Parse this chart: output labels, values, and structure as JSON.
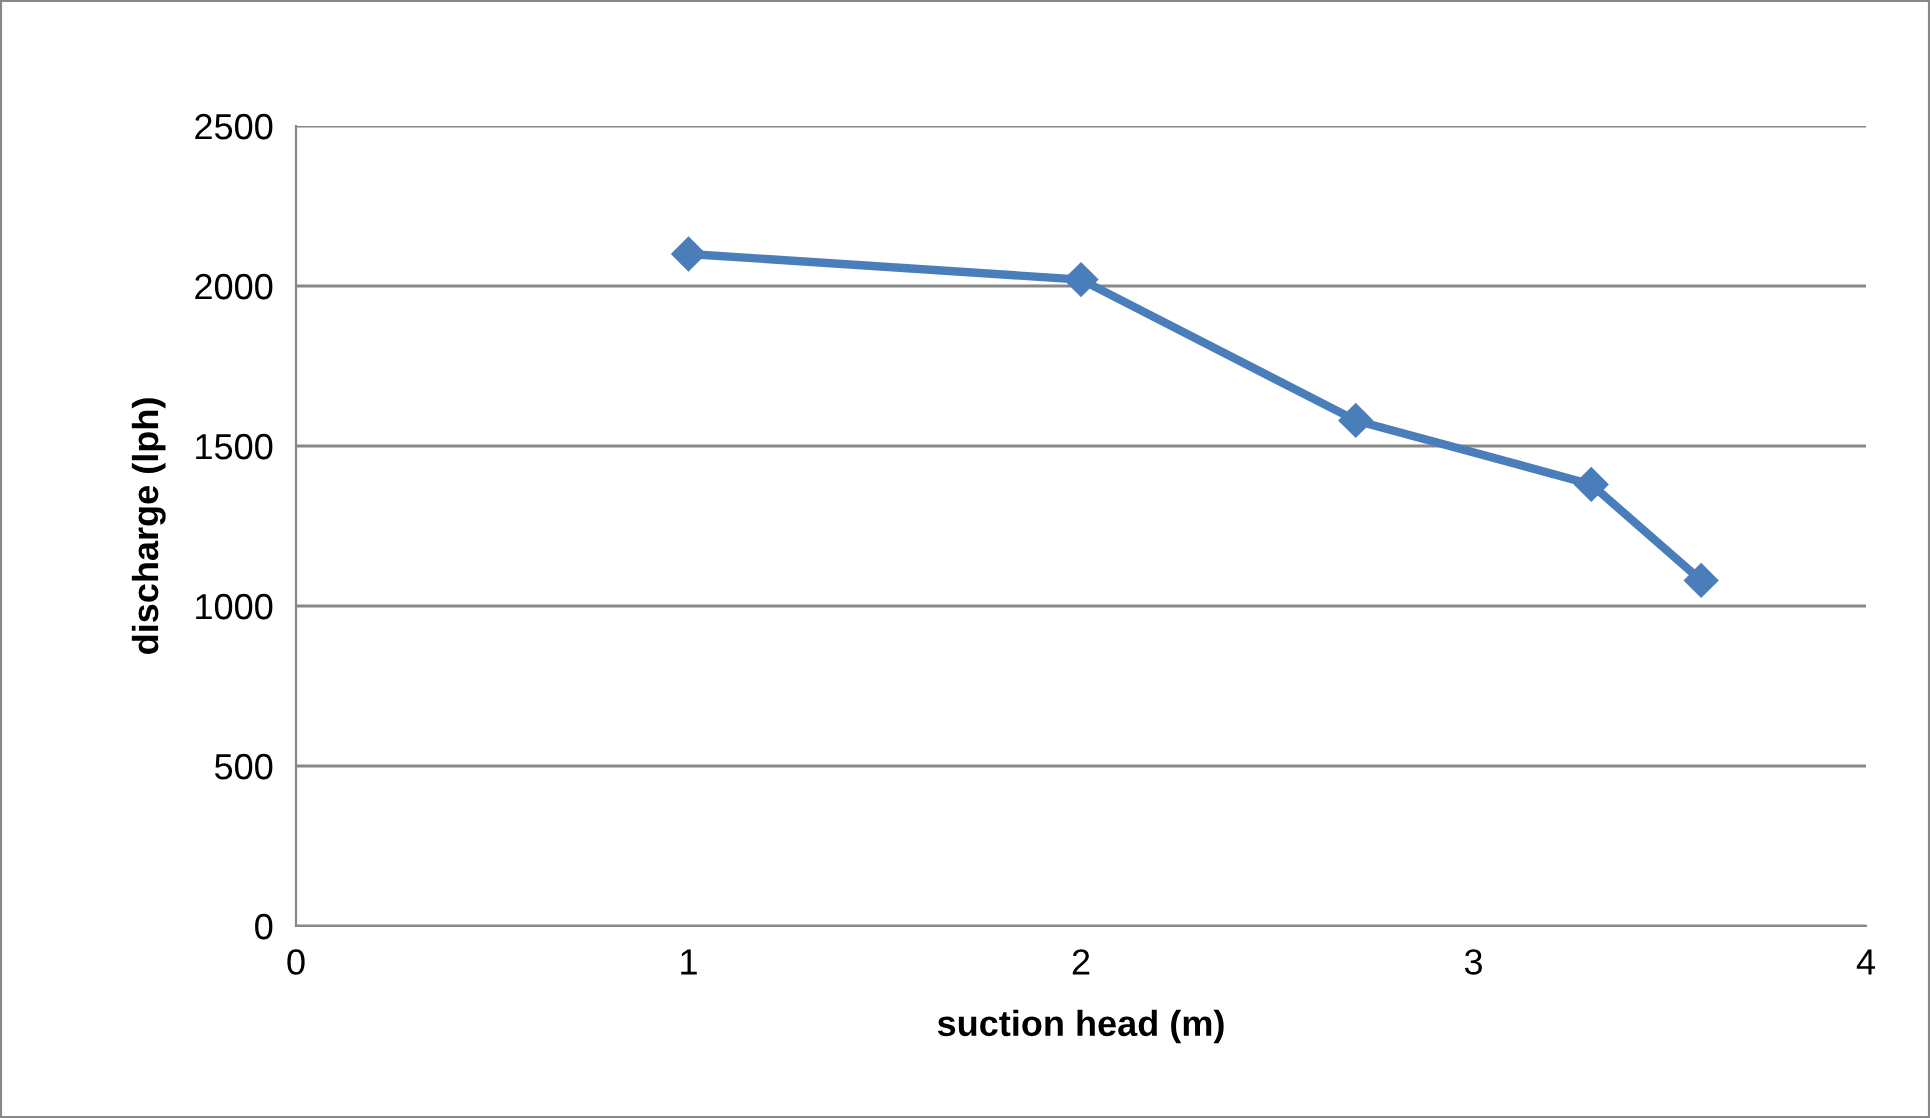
{
  "chart_data": {
    "type": "line",
    "xlabel": "suction head (m)",
    "ylabel": "discharge (lph)",
    "x": [
      1.0,
      2.0,
      2.7,
      3.3,
      3.58
    ],
    "series": [
      {
        "color": "#4a7ebb",
        "values": [
          2100,
          2020,
          1580,
          1380,
          1080
        ]
      }
    ],
    "xlim": [
      0,
      4
    ],
    "xticks": [
      0,
      1,
      2,
      3,
      4
    ],
    "ylim": [
      0,
      2500
    ],
    "yticks": [
      0,
      500,
      1000,
      1500,
      2000,
      2500
    ],
    "grid": "y",
    "marker": "diamond",
    "line_style": "solid",
    "legend": false
  }
}
